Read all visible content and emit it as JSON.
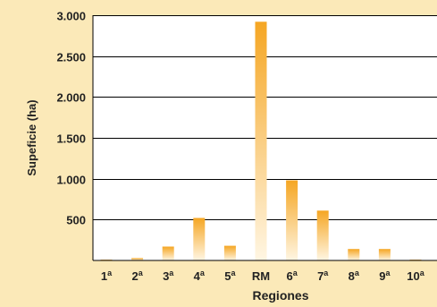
{
  "chart_data": {
    "type": "bar",
    "categories": [
      "1ª",
      "2ª",
      "3ª",
      "4ª",
      "5ª",
      "RM",
      "6ª",
      "7ª",
      "8ª",
      "9ª",
      "10ª"
    ],
    "category_base": [
      "1",
      "2",
      "3",
      "4",
      "5",
      "RM",
      "6",
      "7",
      "8",
      "9",
      "10"
    ],
    "category_sup": [
      "a",
      "a",
      "a",
      "a",
      "a",
      "",
      "a",
      "a",
      "a",
      "a",
      "a"
    ],
    "values": [
      10,
      30,
      170,
      520,
      180,
      2920,
      980,
      610,
      140,
      140,
      10
    ],
    "xlabel": "Regiones",
    "ylabel": "Supeficie (ha)",
    "ylim": [
      0,
      3000
    ],
    "yticks": [
      500,
      1000,
      1500,
      2000,
      2500,
      3000
    ],
    "ytick_labels": [
      "500",
      "1.000",
      "1.500",
      "2.000",
      "2.500",
      "3.000"
    ],
    "grid": true,
    "colors": {
      "background": "#FBE9B8",
      "plot_background": "#FFFFFF",
      "bar_top": "#F5A623",
      "bar_bottom": "#FFF6E3",
      "grid": "#000000",
      "text": "#222222"
    }
  }
}
